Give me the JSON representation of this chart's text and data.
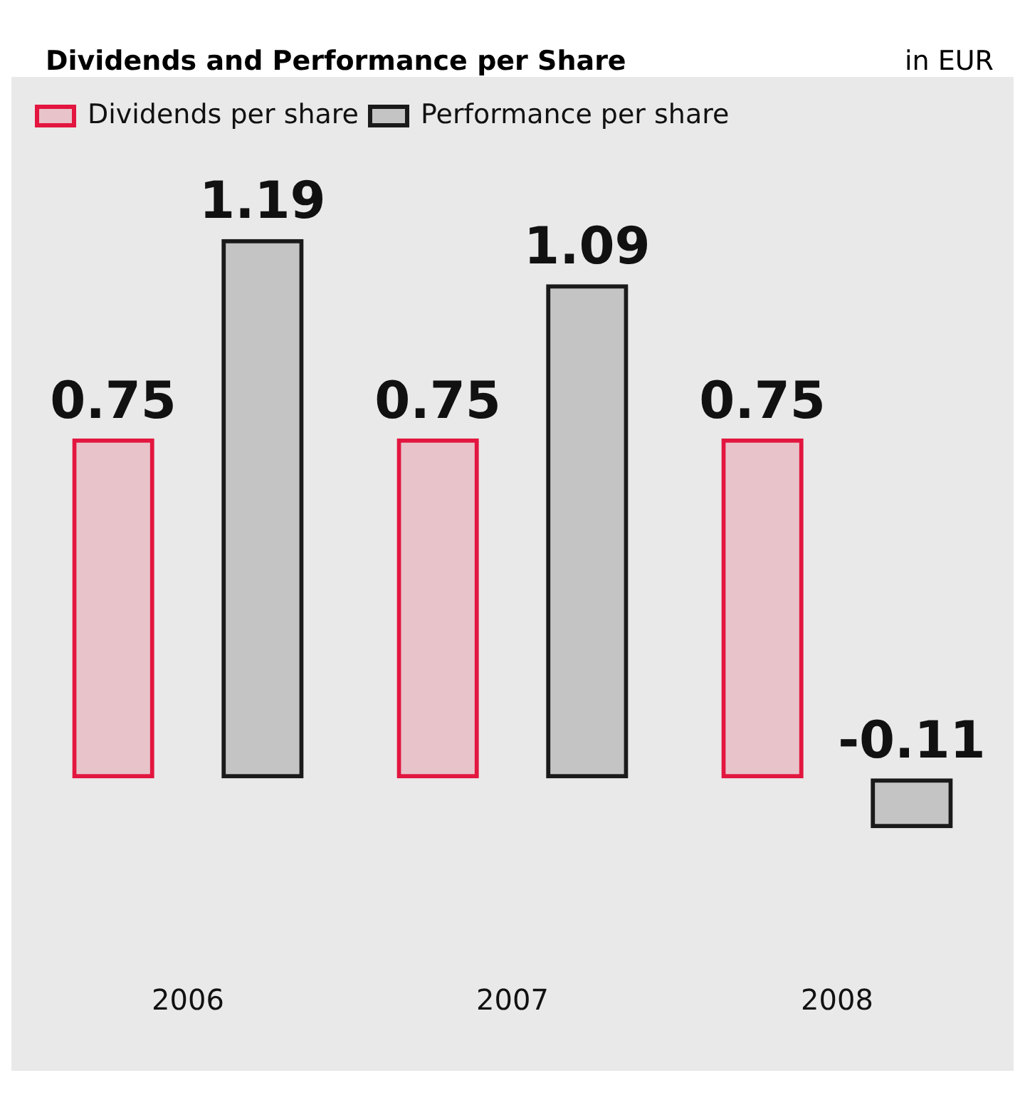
{
  "chart_data": {
    "type": "bar",
    "title": "Dividends and Performance per Share",
    "annotations": [
      "in EUR"
    ],
    "categories": [
      "2006",
      "2007",
      "2008"
    ],
    "series": [
      {
        "name": "Dividends per share",
        "color": "#e2163f",
        "values": [
          0.75,
          0.75,
          0.75
        ]
      },
      {
        "name": "Performance per share",
        "color": "#1a1a1a",
        "values": [
          1.19,
          1.09,
          -0.11
        ]
      }
    ],
    "data_labels": true,
    "legend": "top left",
    "grid": false
  }
}
